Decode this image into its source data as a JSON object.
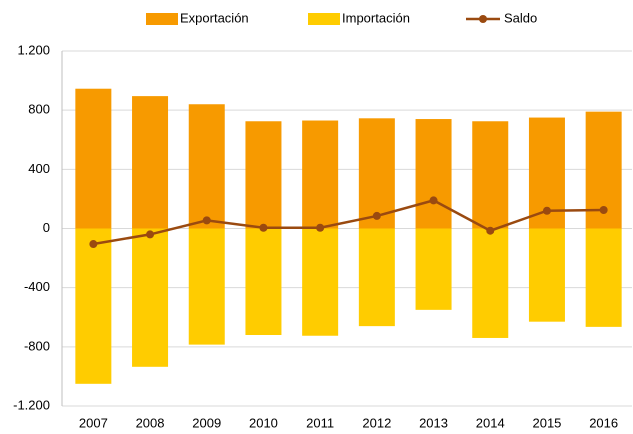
{
  "chart_data": {
    "type": "bar_line",
    "categories": [
      "2007",
      "2008",
      "2009",
      "2010",
      "2011",
      "2012",
      "2013",
      "2014",
      "2015",
      "2016"
    ],
    "series": [
      {
        "name": "Exportación",
        "color": "#f79a00",
        "type": "bar",
        "values": [
          945,
          895,
          840,
          725,
          730,
          745,
          740,
          725,
          750,
          790
        ]
      },
      {
        "name": "Importación",
        "color": "#ffcc00",
        "type": "bar",
        "values": [
          -1050,
          -935,
          -785,
          -720,
          -725,
          -660,
          -550,
          -740,
          -630,
          -665
        ]
      },
      {
        "name": "Saldo",
        "color": "#9a4a10",
        "type": "line",
        "values": [
          -105,
          -40,
          55,
          5,
          5,
          85,
          190,
          -15,
          120,
          125
        ]
      }
    ],
    "ylim": [
      -1200,
      1200
    ],
    "yticks": [
      {
        "value": -1200,
        "label": "-1.200"
      },
      -800,
      -400,
      0,
      400,
      800,
      {
        "value": 1200,
        "label": "1.200"
      }
    ],
    "grid": true,
    "legend": "top"
  }
}
